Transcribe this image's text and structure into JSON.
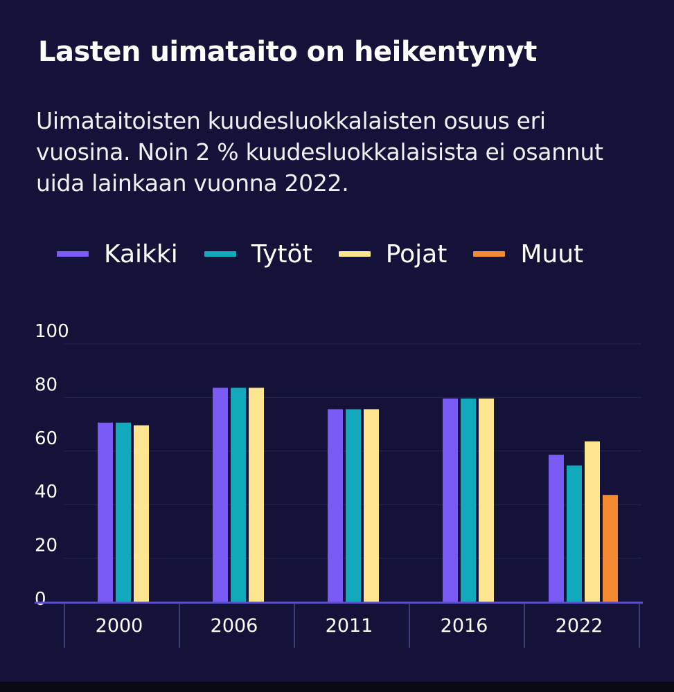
{
  "chart_data": {
    "type": "bar",
    "title": "Lasten uimataito on heikentynyt",
    "subtitle": "Uimataitoisten kuudesluokkalaisten osuus eri vuosina. Noin 2 % kuudesluokkalaisista ei osannut uida lainkaan vuonna 2022.",
    "categories": [
      "2000",
      "2006",
      "2011",
      "2016",
      "2022"
    ],
    "series": [
      {
        "name": "Kaikki",
        "color": "#7a5cf5",
        "values": [
          67,
          80,
          72,
          76,
          55
        ]
      },
      {
        "name": "Tytöt",
        "color": "#12a9bd",
        "values": [
          67,
          80,
          72,
          76,
          51
        ]
      },
      {
        "name": "Pojat",
        "color": "#fde68f",
        "values": [
          66,
          80,
          72,
          76,
          60
        ]
      },
      {
        "name": "Muut",
        "color": "#f58a35",
        "values": [
          null,
          null,
          null,
          null,
          40
        ]
      }
    ],
    "yticks": [
      "0",
      "20",
      "40",
      "60",
      "80",
      "100"
    ],
    "ylim": [
      0,
      100
    ],
    "xlabel": "",
    "ylabel": "",
    "grid": true,
    "legend_position": "top"
  }
}
